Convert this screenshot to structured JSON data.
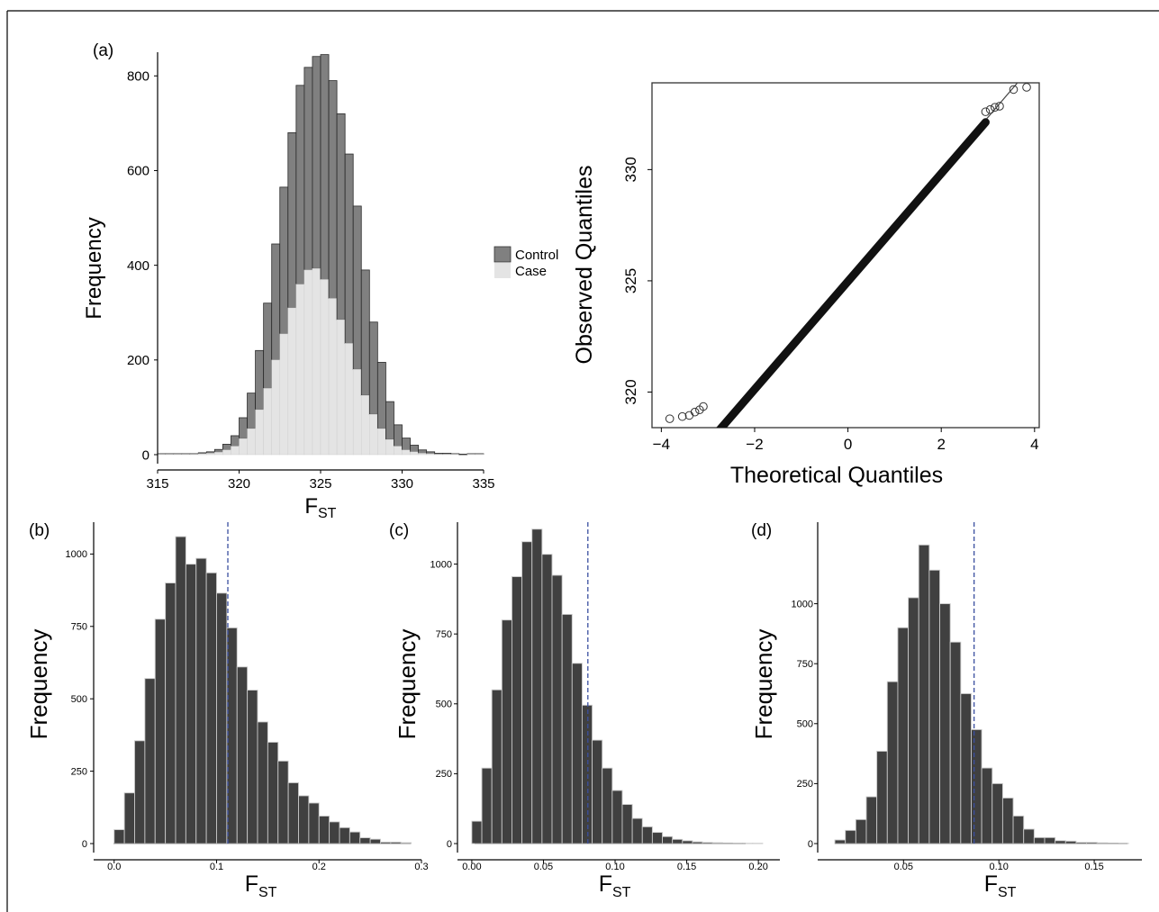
{
  "panel_labels": {
    "a": "(a)",
    "b": "(b)",
    "c": "(c)",
    "d": "(d)"
  },
  "colors": {
    "control": "#808080",
    "case": "#e4e4e4",
    "bar": "#404040",
    "bar_edge": "#c8c8c8",
    "vline": "#3a4fa0",
    "axis": "#000000"
  },
  "chart_data": [
    {
      "id": "a-hist",
      "type": "bar",
      "stacked": true,
      "xlabel_main": "F",
      "xlabel_sub": "ST",
      "ylabel": "Frequency",
      "xlim": [
        315,
        335
      ],
      "ylim": [
        0,
        850
      ],
      "xticks": [
        315,
        320,
        325,
        330,
        335
      ],
      "yticks": [
        0,
        200,
        400,
        600,
        800
      ],
      "bin_start": 315,
      "bin_width": 0.5,
      "legend": {
        "position": "right",
        "entries": [
          "Control",
          "Case"
        ]
      },
      "series": [
        {
          "name": "Case",
          "values": [
            1,
            1,
            1,
            1,
            1,
            2,
            3,
            5,
            10,
            18,
            34,
            55,
            95,
            140,
            200,
            255,
            310,
            360,
            390,
            393,
            370,
            330,
            285,
            235,
            180,
            125,
            85,
            55,
            32,
            18,
            10,
            6,
            3,
            2,
            1,
            1,
            1,
            0,
            1,
            1
          ]
        },
        {
          "name": "Control",
          "values": [
            1,
            1,
            1,
            1,
            1,
            2,
            3,
            6,
            12,
            22,
            44,
            75,
            125,
            180,
            245,
            310,
            370,
            420,
            428,
            448,
            475,
            460,
            435,
            400,
            345,
            265,
            195,
            140,
            80,
            45,
            25,
            14,
            7,
            4,
            2,
            2,
            1,
            1,
            1,
            1
          ]
        }
      ]
    },
    {
      "id": "a-qq",
      "type": "scatter",
      "xlabel": "Theoretical Quantiles",
      "ylabel": "Observed Quantiles",
      "xlim": [
        -4.2,
        4.1
      ],
      "ylim": [
        318.4,
        333.9
      ],
      "xticks": [
        -4,
        -2,
        0,
        2,
        4
      ],
      "yticks": [
        320,
        325,
        330
      ],
      "reference_line": {
        "intercept": 325.0,
        "slope": 2.45
      },
      "outliers": [
        {
          "x": -3.82,
          "y": 318.8
        },
        {
          "x": -3.55,
          "y": 318.9
        },
        {
          "x": -3.4,
          "y": 318.95
        },
        {
          "x": -3.28,
          "y": 319.1
        },
        {
          "x": -3.18,
          "y": 319.2
        },
        {
          "x": -3.1,
          "y": 319.35
        },
        {
          "x": 2.95,
          "y": 332.6
        },
        {
          "x": 3.05,
          "y": 332.7
        },
        {
          "x": 3.15,
          "y": 332.8
        },
        {
          "x": 3.25,
          "y": 332.85
        },
        {
          "x": 3.55,
          "y": 333.6
        },
        {
          "x": 3.83,
          "y": 333.7
        }
      ]
    },
    {
      "id": "b-hist",
      "type": "bar",
      "xlabel_main": "F",
      "xlabel_sub": "ST",
      "ylabel": "Frequency",
      "xlim": [
        -0.02,
        0.3
      ],
      "ylim": [
        0,
        1110
      ],
      "xticks": [
        0.0,
        0.1,
        0.2,
        0.3
      ],
      "xtick_labels": [
        "0.0",
        "0.1",
        "0.2",
        "0.3"
      ],
      "yticks": [
        0,
        250,
        500,
        750,
        1000
      ],
      "bin_start": 0.0,
      "bin_width": 0.01,
      "values": [
        48,
        175,
        355,
        570,
        775,
        900,
        1060,
        965,
        985,
        935,
        865,
        745,
        610,
        530,
        420,
        350,
        285,
        210,
        165,
        140,
        95,
        75,
        55,
        40,
        20,
        15,
        5,
        5,
        3
      ],
      "vline": 0.111
    },
    {
      "id": "c-hist",
      "type": "bar",
      "xlabel_main": "F",
      "xlabel_sub": "ST",
      "ylabel": "Frequency",
      "xlim": [
        -0.01,
        0.215
      ],
      "ylim": [
        0,
        1150
      ],
      "xticks": [
        0.0,
        0.05,
        0.1,
        0.15,
        0.2
      ],
      "xtick_labels": [
        "0.00",
        "0.05",
        "0.10",
        "0.15",
        "0.20"
      ],
      "yticks": [
        0,
        250,
        500,
        750,
        1000
      ],
      "bin_start": 0.0,
      "bin_width": 0.007,
      "values": [
        80,
        270,
        550,
        800,
        955,
        1080,
        1125,
        1035,
        960,
        820,
        645,
        495,
        370,
        270,
        190,
        140,
        90,
        60,
        40,
        25,
        15,
        10,
        6,
        4,
        3,
        2,
        1,
        1,
        1
      ],
      "vline": 0.081
    },
    {
      "id": "d-hist",
      "type": "bar",
      "xlabel_main": "F",
      "xlabel_sub": "ST",
      "ylabel": "Frequency",
      "xlim": [
        0.005,
        0.175
      ],
      "ylim": [
        0,
        1340
      ],
      "xticks": [
        0.05,
        0.1,
        0.15
      ],
      "xtick_labels": [
        "0.05",
        "0.10",
        "0.15"
      ],
      "yticks": [
        0,
        250,
        500,
        750,
        1000
      ],
      "bin_start": 0.014,
      "bin_width": 0.0055,
      "values": [
        15,
        55,
        100,
        195,
        385,
        675,
        900,
        1025,
        1245,
        1140,
        1000,
        840,
        625,
        475,
        315,
        250,
        190,
        115,
        60,
        25,
        25,
        12,
        10,
        5,
        5,
        3,
        2,
        1
      ],
      "vline": 0.087
    }
  ]
}
